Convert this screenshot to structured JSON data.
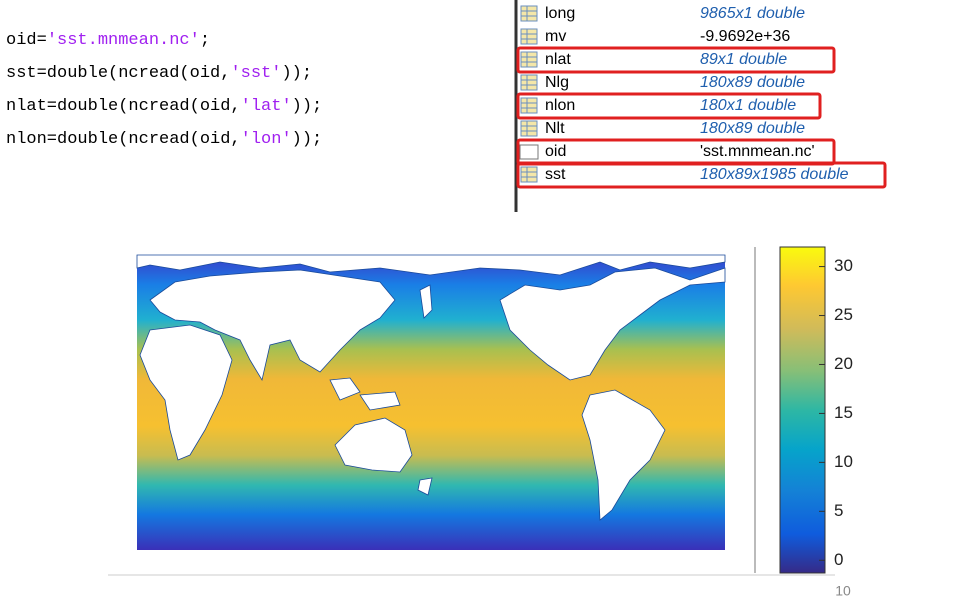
{
  "code": {
    "lines": [
      [
        "oid=",
        "'sst.mnmean.nc'",
        ";"
      ],
      [
        "sst=double(ncread(oid,",
        "'sst'",
        "));"
      ],
      [
        "nlat=double(ncread(oid,",
        "'lat'",
        "));"
      ],
      [
        "nlon=double(ncread(oid,",
        "'lon'",
        "));"
      ]
    ]
  },
  "workspace": {
    "rows": [
      {
        "name": "long",
        "value": "9865x1 double",
        "icon": "table",
        "italic": true,
        "highlighted": false
      },
      {
        "name": "mv",
        "value": "-9.9692e+36",
        "icon": "table",
        "italic": false,
        "highlighted": false
      },
      {
        "name": "nlat",
        "value": "89x1 double",
        "icon": "table",
        "italic": true,
        "highlighted": true
      },
      {
        "name": "Nlg",
        "value": "180x89 double",
        "icon": "table",
        "italic": true,
        "highlighted": false
      },
      {
        "name": "nlon",
        "value": "180x1 double",
        "icon": "table",
        "italic": true,
        "highlighted": true
      },
      {
        "name": "Nlt",
        "value": "180x89 double",
        "icon": "table",
        "italic": true,
        "highlighted": false
      },
      {
        "name": "oid",
        "value": "'sst.mnmean.nc'",
        "icon": "abc",
        "italic": false,
        "highlighted": true
      },
      {
        "name": "sst",
        "value": "180x89x1985 double",
        "icon": "table",
        "italic": true,
        "highlighted": true
      }
    ]
  },
  "colorbar": {
    "clim": [
      -1.3,
      32
    ],
    "ticks": [
      0,
      5,
      10,
      15,
      20,
      25,
      30
    ]
  },
  "page_number": "10"
}
